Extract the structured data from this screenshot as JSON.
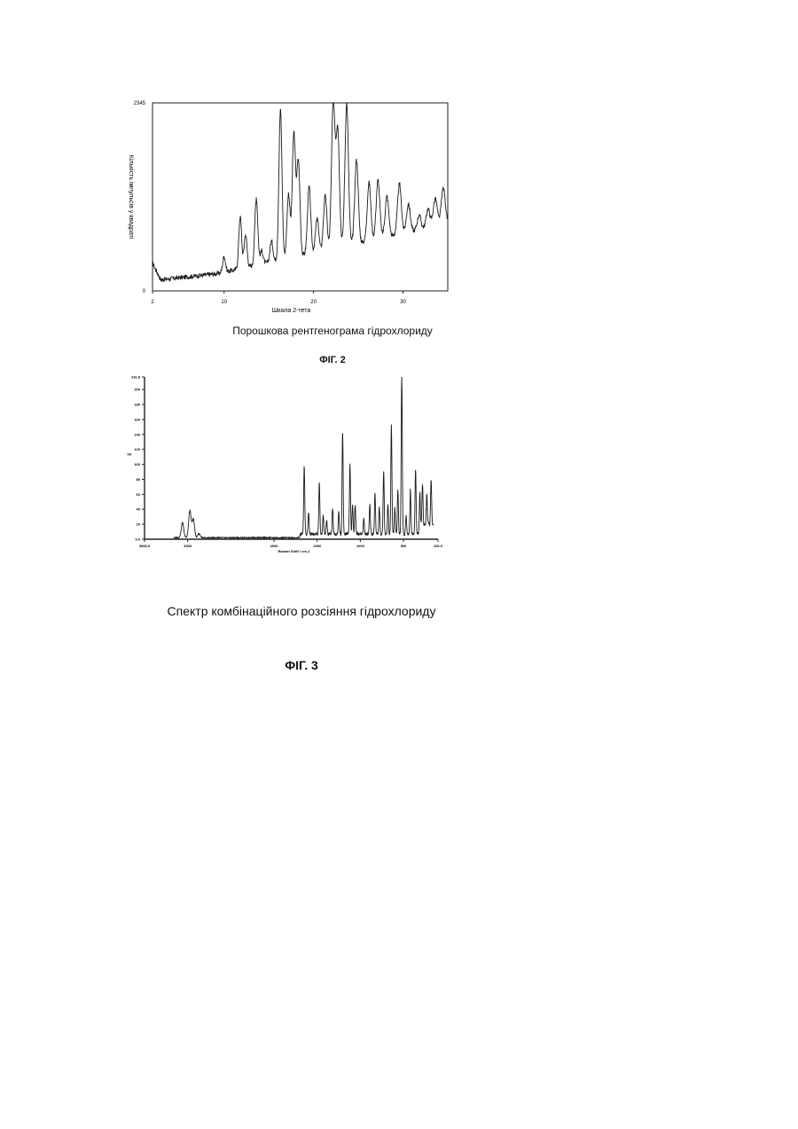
{
  "chart_data": [
    {
      "type": "line",
      "figure_label": "ФІГ. 2",
      "caption": "Порошкова рентгенограма гідрохлориду",
      "xlabel": "Шкала 2-тета",
      "ylabel": "Кількість імпульсів у квадраті",
      "xlim": [
        2,
        35
      ],
      "ylim": [
        0,
        2345
      ],
      "x_ticks": [
        2,
        10,
        20,
        30
      ],
      "y_ticks": [
        0,
        2345
      ],
      "grid": false,
      "peaks": [
        {
          "x": 10.0,
          "y": 430
        },
        {
          "x": 11.8,
          "y": 930
        },
        {
          "x": 12.4,
          "y": 700
        },
        {
          "x": 13.6,
          "y": 1160
        },
        {
          "x": 14.2,
          "y": 500
        },
        {
          "x": 15.3,
          "y": 620
        },
        {
          "x": 16.3,
          "y": 2260
        },
        {
          "x": 17.2,
          "y": 1210
        },
        {
          "x": 17.8,
          "y": 1960
        },
        {
          "x": 18.3,
          "y": 1620
        },
        {
          "x": 19.5,
          "y": 1300
        },
        {
          "x": 20.4,
          "y": 900
        },
        {
          "x": 21.3,
          "y": 1180
        },
        {
          "x": 22.2,
          "y": 2345
        },
        {
          "x": 22.7,
          "y": 2010
        },
        {
          "x": 23.7,
          "y": 2340
        },
        {
          "x": 24.8,
          "y": 1640
        },
        {
          "x": 26.2,
          "y": 1350
        },
        {
          "x": 27.2,
          "y": 1380
        },
        {
          "x": 28.2,
          "y": 1180
        },
        {
          "x": 29.6,
          "y": 1330
        },
        {
          "x": 30.6,
          "y": 1080
        },
        {
          "x": 31.8,
          "y": 940
        },
        {
          "x": 32.8,
          "y": 1020
        },
        {
          "x": 33.6,
          "y": 1150
        },
        {
          "x": 34.5,
          "y": 1280
        }
      ]
    },
    {
      "type": "line",
      "figure_label": "ФІГ. 3",
      "caption": "Спектр комбінаційного розсіяння гідрохлориду",
      "xlabel": "Raman Shift / cm-1",
      "ylabel": "Int",
      "xlim": [
        3500,
        100
      ],
      "ylim": [
        0,
        216.8
      ],
      "x_ticks": [
        3500,
        3000,
        2000,
        1500,
        1000,
        500,
        100
      ],
      "x_tick_labels": [
        "3500.0",
        "3000",
        "2000",
        "1500",
        "1000",
        "500",
        "100.0"
      ],
      "y_ticks": [
        0,
        20,
        40,
        60,
        80,
        100,
        120,
        140,
        160,
        180,
        200,
        216.8
      ],
      "y_tick_labels": [
        "0.0",
        "20",
        "40",
        "60",
        "80",
        "100",
        "120",
        "140",
        "160",
        "180",
        "200",
        "216.8"
      ],
      "grid": false,
      "peaks": [
        {
          "x": 3060,
          "y": 20
        },
        {
          "x": 2975,
          "y": 36
        },
        {
          "x": 2935,
          "y": 25
        },
        {
          "x": 2870,
          "y": 6
        },
        {
          "x": 1650,
          "y": 92
        },
        {
          "x": 1600,
          "y": 30
        },
        {
          "x": 1475,
          "y": 70
        },
        {
          "x": 1430,
          "y": 25
        },
        {
          "x": 1390,
          "y": 18
        },
        {
          "x": 1320,
          "y": 35
        },
        {
          "x": 1250,
          "y": 30
        },
        {
          "x": 1205,
          "y": 138
        },
        {
          "x": 1120,
          "y": 93
        },
        {
          "x": 1090,
          "y": 38
        },
        {
          "x": 1060,
          "y": 40
        },
        {
          "x": 960,
          "y": 20
        },
        {
          "x": 890,
          "y": 40
        },
        {
          "x": 830,
          "y": 55
        },
        {
          "x": 780,
          "y": 35
        },
        {
          "x": 730,
          "y": 85
        },
        {
          "x": 680,
          "y": 40
        },
        {
          "x": 640,
          "y": 148
        },
        {
          "x": 600,
          "y": 35
        },
        {
          "x": 565,
          "y": 60
        },
        {
          "x": 520,
          "y": 216
        },
        {
          "x": 470,
          "y": 25
        },
        {
          "x": 420,
          "y": 60
        },
        {
          "x": 360,
          "y": 86
        },
        {
          "x": 310,
          "y": 55
        },
        {
          "x": 280,
          "y": 55
        },
        {
          "x": 230,
          "y": 40
        },
        {
          "x": 180,
          "y": 62
        }
      ]
    }
  ]
}
